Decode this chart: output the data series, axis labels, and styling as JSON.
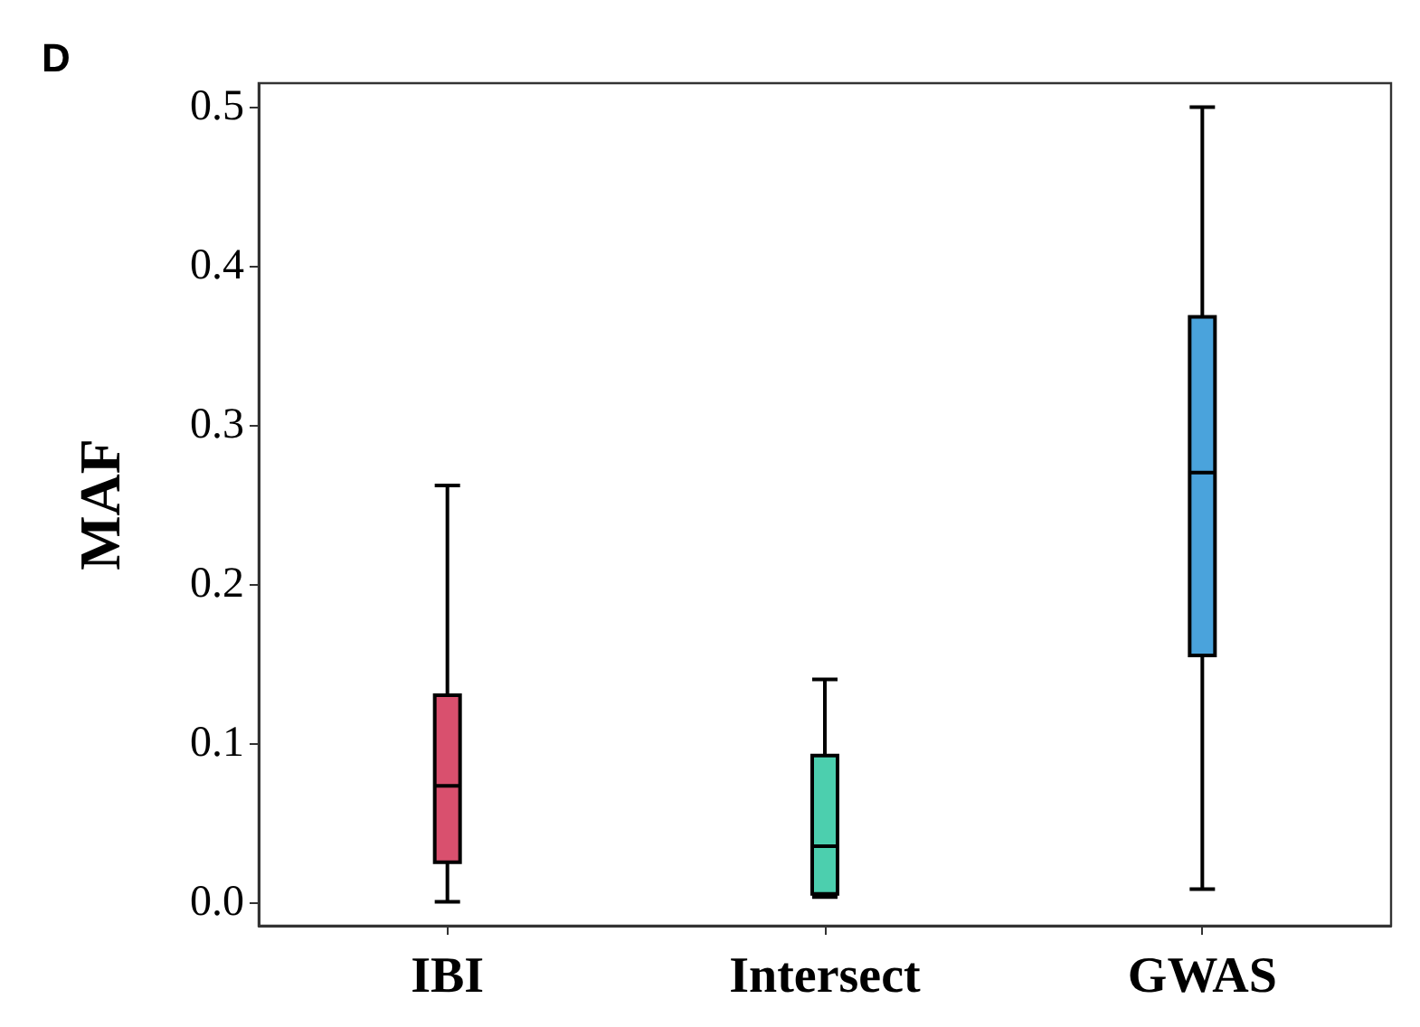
{
  "chart_data": {
    "type": "box",
    "title": "D",
    "ylabel": "MAF",
    "categories": [
      "IBI",
      "Intersect",
      "GWAS"
    ],
    "boxes": [
      {
        "low": 0.0,
        "q1": 0.025,
        "median": 0.073,
        "q3": 0.13,
        "high": 0.262
      },
      {
        "low": 0.003,
        "q1": 0.005,
        "median": 0.035,
        "q3": 0.092,
        "high": 0.14
      },
      {
        "low": 0.008,
        "q1": 0.155,
        "median": 0.27,
        "q3": 0.368,
        "high": 0.5
      }
    ],
    "colors": [
      "#d9506e",
      "#4ccfae",
      "#4aa3dc"
    ],
    "ylim": [
      -0.015,
      0.515
    ],
    "yticks": [
      {
        "value": 0,
        "label": "0.0"
      },
      {
        "value": 0.1,
        "label": "0.1"
      },
      {
        "value": 0.2,
        "label": "0.2"
      },
      {
        "value": 0.3,
        "label": "0.3"
      },
      {
        "value": 0.4,
        "label": "0.4"
      },
      {
        "value": 0.5,
        "label": "0.5"
      }
    ],
    "grid": false
  }
}
